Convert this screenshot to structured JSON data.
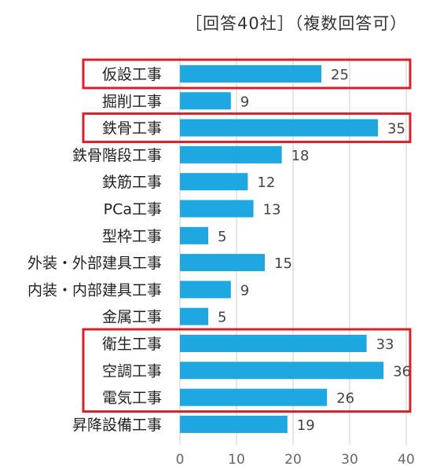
{
  "subtitle": "［回答40社］（複数回答可）",
  "colors": {
    "bar": "#1ea7e1",
    "highlight": "#d7202c",
    "grid": "#cccccc",
    "label": "#222222",
    "value": "#444444",
    "tick": "#666666"
  },
  "chart_data": {
    "type": "bar",
    "orientation": "horizontal",
    "title": "",
    "subtitle": "［回答40社］（複数回答可）",
    "xlabel": "",
    "ylabel": "",
    "xlim": [
      0,
      40
    ],
    "xticks": [
      0,
      10,
      20,
      30,
      40
    ],
    "grid": "vertical",
    "categories": [
      "仮設工事",
      "掘削工事",
      "鉄骨工事",
      "鉄骨階段工事",
      "鉄筋工事",
      "PCa工事",
      "型枠工事",
      "外装・外部建具工事",
      "内装・内部建具工事",
      "金属工事",
      "衛生工事",
      "空調工事",
      "電気工事",
      "昇降設備工事"
    ],
    "values": [
      25,
      9,
      35,
      18,
      12,
      13,
      5,
      15,
      9,
      5,
      33,
      36,
      26,
      19
    ],
    "highlight_groups": [
      [
        "仮設工事"
      ],
      [
        "鉄骨工事"
      ],
      [
        "衛生工事",
        "空調工事",
        "電気工事"
      ]
    ]
  }
}
